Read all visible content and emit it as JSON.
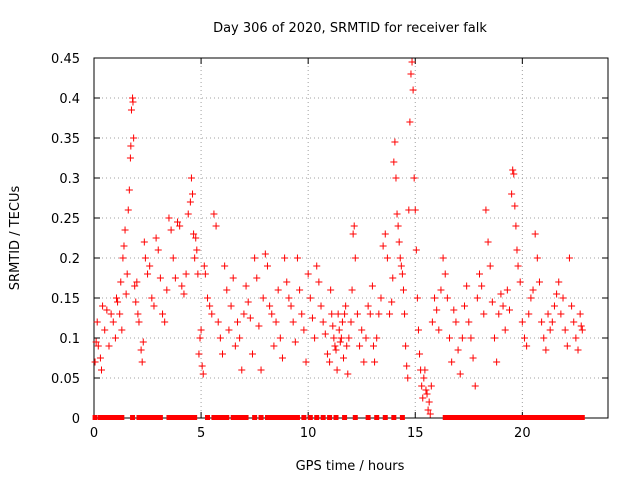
{
  "chart_data": {
    "type": "scatter",
    "title": "Day 306 of 2020, SRMTID for receiver falk",
    "xlabel": "GPS time / hours",
    "ylabel": "SRMTID / TECUs",
    "xlim": [
      0,
      24
    ],
    "ylim": [
      0,
      0.45
    ],
    "xticks": [
      0,
      5,
      10,
      15,
      20
    ],
    "xtick_labels": [
      "0",
      "5",
      "10",
      "15",
      "20"
    ],
    "yticks": [
      0,
      0.05,
      0.1,
      0.15,
      0.2,
      0.25,
      0.3,
      0.35,
      0.4,
      0.45
    ],
    "ytick_labels": [
      "0",
      "0.05",
      "0.1",
      "0.15",
      "0.2",
      "0.25",
      "0.3",
      "0.35",
      "0.4",
      "0.45"
    ],
    "grid": true,
    "marker": "+",
    "color": "#ff0000",
    "series": [
      {
        "name": "SRMTID",
        "points": [
          [
            0.05,
            0.07
          ],
          [
            0.1,
            0.095
          ],
          [
            0.15,
            0.12
          ],
          [
            0.2,
            0.09
          ],
          [
            0.3,
            0.075
          ],
          [
            0.35,
            0.06
          ],
          [
            0.4,
            0.14
          ],
          [
            0.5,
            0.11
          ],
          [
            0.6,
            0.135
          ],
          [
            0.7,
            0.09
          ],
          [
            0.8,
            0.13
          ],
          [
            0.9,
            0.12
          ],
          [
            1.0,
            0.1
          ],
          [
            1.05,
            0.15
          ],
          [
            1.1,
            0.145
          ],
          [
            1.2,
            0.13
          ],
          [
            1.25,
            0.17
          ],
          [
            1.3,
            0.11
          ],
          [
            1.35,
            0.2
          ],
          [
            1.4,
            0.215
          ],
          [
            1.45,
            0.235
          ],
          [
            1.5,
            0.155
          ],
          [
            1.55,
            0.18
          ],
          [
            1.6,
            0.26
          ],
          [
            1.65,
            0.285
          ],
          [
            1.7,
            0.325
          ],
          [
            1.72,
            0.34
          ],
          [
            1.75,
            0.385
          ],
          [
            1.8,
            0.4
          ],
          [
            1.82,
            0.395
          ],
          [
            1.85,
            0.35
          ],
          [
            1.9,
            0.165
          ],
          [
            1.95,
            0.145
          ],
          [
            2.0,
            0.17
          ],
          [
            2.05,
            0.13
          ],
          [
            2.1,
            0.12
          ],
          [
            2.2,
            0.085
          ],
          [
            2.25,
            0.07
          ],
          [
            2.3,
            0.095
          ],
          [
            2.35,
            0.22
          ],
          [
            2.4,
            0.2
          ],
          [
            2.5,
            0.18
          ],
          [
            2.6,
            0.19
          ],
          [
            2.7,
            0.15
          ],
          [
            2.8,
            0.14
          ],
          [
            2.9,
            0.225
          ],
          [
            3.0,
            0.21
          ],
          [
            3.1,
            0.175
          ],
          [
            3.2,
            0.13
          ],
          [
            3.3,
            0.12
          ],
          [
            3.4,
            0.16
          ],
          [
            3.5,
            0.25
          ],
          [
            3.6,
            0.235
          ],
          [
            3.7,
            0.2
          ],
          [
            3.8,
            0.175
          ],
          [
            3.9,
            0.245
          ],
          [
            4.0,
            0.24
          ],
          [
            4.1,
            0.165
          ],
          [
            4.2,
            0.155
          ],
          [
            4.3,
            0.18
          ],
          [
            4.4,
            0.255
          ],
          [
            4.5,
            0.27
          ],
          [
            4.55,
            0.3
          ],
          [
            4.6,
            0.28
          ],
          [
            4.65,
            0.23
          ],
          [
            4.7,
            0.2
          ],
          [
            4.75,
            0.225
          ],
          [
            4.8,
            0.21
          ],
          [
            4.85,
            0.18
          ],
          [
            4.9,
            0.08
          ],
          [
            4.95,
            0.1
          ],
          [
            5.0,
            0.11
          ],
          [
            5.05,
            0.065
          ],
          [
            5.1,
            0.055
          ],
          [
            5.15,
            0.19
          ],
          [
            5.2,
            0.18
          ],
          [
            5.3,
            0.15
          ],
          [
            5.4,
            0.14
          ],
          [
            5.5,
            0.13
          ],
          [
            5.6,
            0.255
          ],
          [
            5.7,
            0.24
          ],
          [
            5.8,
            0.12
          ],
          [
            5.9,
            0.1
          ],
          [
            6.0,
            0.08
          ],
          [
            6.1,
            0.19
          ],
          [
            6.2,
            0.16
          ],
          [
            6.3,
            0.11
          ],
          [
            6.4,
            0.14
          ],
          [
            6.5,
            0.175
          ],
          [
            6.6,
            0.09
          ],
          [
            6.7,
            0.12
          ],
          [
            6.8,
            0.1
          ],
          [
            6.9,
            0.06
          ],
          [
            7.0,
            0.13
          ],
          [
            7.1,
            0.165
          ],
          [
            7.2,
            0.145
          ],
          [
            7.3,
            0.125
          ],
          [
            7.4,
            0.08
          ],
          [
            7.5,
            0.2
          ],
          [
            7.6,
            0.175
          ],
          [
            7.7,
            0.115
          ],
          [
            7.8,
            0.06
          ],
          [
            7.9,
            0.15
          ],
          [
            8.0,
            0.205
          ],
          [
            8.1,
            0.19
          ],
          [
            8.2,
            0.14
          ],
          [
            8.3,
            0.13
          ],
          [
            8.4,
            0.09
          ],
          [
            8.5,
            0.12
          ],
          [
            8.6,
            0.16
          ],
          [
            8.7,
            0.1
          ],
          [
            8.8,
            0.075
          ],
          [
            8.9,
            0.2
          ],
          [
            9.0,
            0.17
          ],
          [
            9.1,
            0.15
          ],
          [
            9.2,
            0.14
          ],
          [
            9.3,
            0.12
          ],
          [
            9.4,
            0.095
          ],
          [
            9.5,
            0.2
          ],
          [
            9.6,
            0.16
          ],
          [
            9.7,
            0.13
          ],
          [
            9.8,
            0.11
          ],
          [
            9.9,
            0.07
          ],
          [
            10.0,
            0.18
          ],
          [
            10.1,
            0.15
          ],
          [
            10.2,
            0.125
          ],
          [
            10.3,
            0.1
          ],
          [
            10.4,
            0.19
          ],
          [
            10.5,
            0.17
          ],
          [
            10.6,
            0.14
          ],
          [
            10.7,
            0.12
          ],
          [
            10.8,
            0.105
          ],
          [
            10.9,
            0.08
          ],
          [
            11.0,
            0.07
          ],
          [
            11.05,
            0.16
          ],
          [
            11.1,
            0.13
          ],
          [
            11.15,
            0.115
          ],
          [
            11.2,
            0.1
          ],
          [
            11.25,
            0.09
          ],
          [
            11.3,
            0.085
          ],
          [
            11.35,
            0.06
          ],
          [
            11.4,
            0.13
          ],
          [
            11.45,
            0.11
          ],
          [
            11.5,
            0.095
          ],
          [
            11.55,
            0.1
          ],
          [
            11.6,
            0.12
          ],
          [
            11.65,
            0.075
          ],
          [
            11.7,
            0.13
          ],
          [
            11.75,
            0.14
          ],
          [
            11.8,
            0.09
          ],
          [
            11.85,
            0.055
          ],
          [
            11.9,
            0.1
          ],
          [
            12.0,
            0.12
          ],
          [
            12.05,
            0.16
          ],
          [
            12.1,
            0.23
          ],
          [
            12.15,
            0.24
          ],
          [
            12.2,
            0.2
          ],
          [
            12.3,
            0.13
          ],
          [
            12.4,
            0.09
          ],
          [
            12.5,
            0.11
          ],
          [
            12.6,
            0.07
          ],
          [
            12.7,
            0.1
          ],
          [
            12.8,
            0.14
          ],
          [
            12.9,
            0.13
          ],
          [
            13.0,
            0.165
          ],
          [
            13.05,
            0.09
          ],
          [
            13.1,
            0.07
          ],
          [
            13.2,
            0.1
          ],
          [
            13.3,
            0.13
          ],
          [
            13.4,
            0.15
          ],
          [
            13.5,
            0.215
          ],
          [
            13.6,
            0.23
          ],
          [
            13.7,
            0.2
          ],
          [
            13.8,
            0.13
          ],
          [
            13.9,
            0.145
          ],
          [
            13.95,
            0.175
          ],
          [
            14.0,
            0.32
          ],
          [
            14.05,
            0.345
          ],
          [
            14.1,
            0.3
          ],
          [
            14.15,
            0.255
          ],
          [
            14.2,
            0.24
          ],
          [
            14.25,
            0.22
          ],
          [
            14.3,
            0.2
          ],
          [
            14.35,
            0.19
          ],
          [
            14.4,
            0.18
          ],
          [
            14.45,
            0.16
          ],
          [
            14.5,
            0.13
          ],
          [
            14.55,
            0.09
          ],
          [
            14.6,
            0.065
          ],
          [
            14.65,
            0.05
          ],
          [
            14.7,
            0.26
          ],
          [
            14.75,
            0.37
          ],
          [
            14.8,
            0.43
          ],
          [
            14.85,
            0.445
          ],
          [
            14.9,
            0.41
          ],
          [
            14.95,
            0.3
          ],
          [
            15.0,
            0.26
          ],
          [
            15.05,
            0.21
          ],
          [
            15.1,
            0.15
          ],
          [
            15.15,
            0.11
          ],
          [
            15.2,
            0.08
          ],
          [
            15.25,
            0.06
          ],
          [
            15.3,
            0.04
          ],
          [
            15.35,
            0.025
          ],
          [
            15.4,
            0.05
          ],
          [
            15.45,
            0.06
          ],
          [
            15.5,
            0.035
          ],
          [
            15.55,
            0.03
          ],
          [
            15.6,
            0.01
          ],
          [
            15.65,
            0.02
          ],
          [
            15.7,
            0.005
          ],
          [
            15.75,
            0.04
          ],
          [
            15.8,
            0.12
          ],
          [
            15.9,
            0.15
          ],
          [
            16.0,
            0.135
          ],
          [
            16.1,
            0.11
          ],
          [
            16.2,
            0.16
          ],
          [
            16.3,
            0.2
          ],
          [
            16.4,
            0.18
          ],
          [
            16.5,
            0.15
          ],
          [
            16.6,
            0.1
          ],
          [
            16.7,
            0.07
          ],
          [
            16.8,
            0.135
          ],
          [
            16.9,
            0.12
          ],
          [
            17.0,
            0.085
          ],
          [
            17.1,
            0.055
          ],
          [
            17.2,
            0.1
          ],
          [
            17.3,
            0.14
          ],
          [
            17.4,
            0.165
          ],
          [
            17.5,
            0.12
          ],
          [
            17.6,
            0.1
          ],
          [
            17.7,
            0.075
          ],
          [
            17.8,
            0.04
          ],
          [
            17.9,
            0.15
          ],
          [
            18.0,
            0.18
          ],
          [
            18.1,
            0.165
          ],
          [
            18.2,
            0.13
          ],
          [
            18.3,
            0.26
          ],
          [
            18.4,
            0.22
          ],
          [
            18.5,
            0.19
          ],
          [
            18.6,
            0.145
          ],
          [
            18.7,
            0.1
          ],
          [
            18.8,
            0.07
          ],
          [
            18.9,
            0.13
          ],
          [
            19.0,
            0.155
          ],
          [
            19.1,
            0.14
          ],
          [
            19.2,
            0.11
          ],
          [
            19.3,
            0.16
          ],
          [
            19.4,
            0.135
          ],
          [
            19.5,
            0.28
          ],
          [
            19.55,
            0.31
          ],
          [
            19.6,
            0.305
          ],
          [
            19.65,
            0.265
          ],
          [
            19.7,
            0.24
          ],
          [
            19.75,
            0.21
          ],
          [
            19.8,
            0.19
          ],
          [
            19.9,
            0.17
          ],
          [
            20.0,
            0.12
          ],
          [
            20.1,
            0.1
          ],
          [
            20.2,
            0.09
          ],
          [
            20.3,
            0.13
          ],
          [
            20.4,
            0.15
          ],
          [
            20.5,
            0.16
          ],
          [
            20.6,
            0.23
          ],
          [
            20.7,
            0.2
          ],
          [
            20.8,
            0.17
          ],
          [
            20.9,
            0.12
          ],
          [
            21.0,
            0.1
          ],
          [
            21.1,
            0.085
          ],
          [
            21.2,
            0.13
          ],
          [
            21.3,
            0.11
          ],
          [
            21.4,
            0.12
          ],
          [
            21.5,
            0.14
          ],
          [
            21.6,
            0.155
          ],
          [
            21.7,
            0.17
          ],
          [
            21.8,
            0.13
          ],
          [
            21.9,
            0.15
          ],
          [
            22.0,
            0.11
          ],
          [
            22.1,
            0.09
          ],
          [
            22.2,
            0.2
          ],
          [
            22.3,
            0.14
          ],
          [
            22.4,
            0.12
          ],
          [
            22.5,
            0.1
          ],
          [
            22.6,
            0.085
          ],
          [
            22.7,
            0.13
          ],
          [
            22.75,
            0.115
          ],
          [
            22.8,
            0.11
          ]
        ]
      }
    ],
    "zero_markers": [
      0.05,
      0.3,
      0.5,
      0.7,
      0.9,
      1.1,
      1.3,
      1.8,
      2.1,
      2.3,
      2.5,
      2.7,
      2.9,
      3.1,
      3.5,
      3.7,
      3.9,
      4.1,
      4.3,
      4.5,
      4.7,
      5.3,
      5.6,
      5.8,
      6.0,
      6.2,
      6.5,
      6.7,
      6.9,
      7.1,
      7.5,
      7.8,
      8.1,
      8.3,
      8.5,
      8.7,
      8.9,
      9.1,
      9.3,
      9.5,
      9.8,
      10.1,
      10.4,
      10.7,
      11.0,
      11.3,
      11.7,
      12.2,
      12.8,
      13.2,
      13.6,
      14.0,
      14.4,
      16.4,
      16.6,
      16.8,
      17.0,
      17.2,
      17.4,
      17.6,
      17.8,
      18.0,
      18.2,
      18.4,
      18.6,
      18.8,
      19.0,
      19.2,
      19.4,
      19.6,
      19.8,
      20.0,
      20.2,
      20.4,
      20.6,
      20.8,
      21.0,
      21.2,
      21.4,
      21.6,
      21.8,
      22.0,
      22.2,
      22.4,
      22.6,
      22.8
    ]
  }
}
